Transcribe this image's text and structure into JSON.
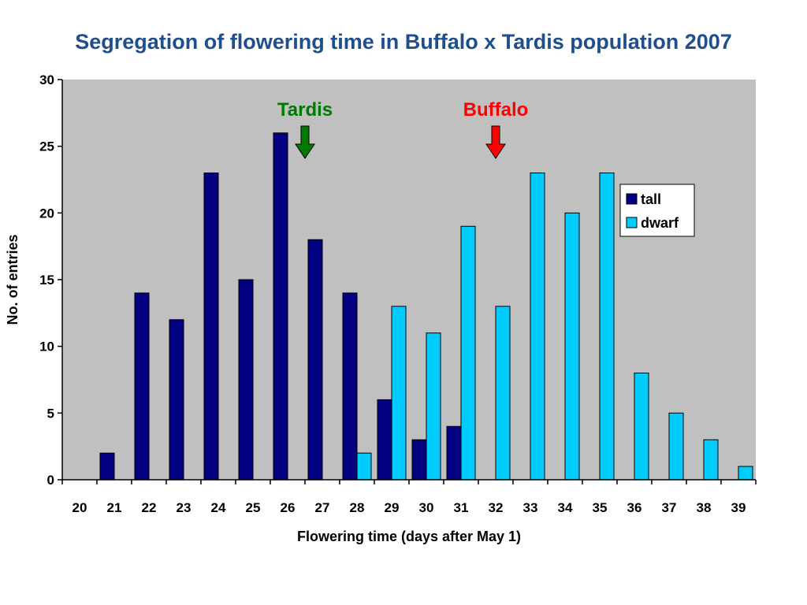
{
  "chart_data": {
    "type": "bar",
    "title": "Segregation of flowering time in Buffalo x Tardis population 2007",
    "xlabel": "Flowering time (days after May 1)",
    "ylabel": "No. of entries",
    "categories": [
      "20",
      "21",
      "22",
      "23",
      "24",
      "25",
      "26",
      "27",
      "28",
      "29",
      "30",
      "31",
      "32",
      "33",
      "34",
      "35",
      "36",
      "37",
      "38",
      "39"
    ],
    "series": [
      {
        "name": "tall",
        "color": "#000080",
        "values": [
          0,
          2,
          14,
          12,
          23,
          15,
          26,
          18,
          14,
          6,
          3,
          4,
          0,
          0,
          0,
          0,
          0,
          0,
          0,
          0
        ]
      },
      {
        "name": "dwarf",
        "color": "#00ccff",
        "values": [
          0,
          0,
          0,
          0,
          0,
          0,
          0,
          0,
          2,
          13,
          11,
          19,
          13,
          23,
          20,
          23,
          8,
          5,
          3,
          1
        ]
      }
    ],
    "ylim": [
      0,
      30
    ],
    "yticks": [
      0,
      5,
      10,
      15,
      20,
      25,
      30
    ],
    "grid": false,
    "plot_background": "#c0c0c0",
    "legend_position": "top-right",
    "annotations": [
      {
        "text": "Tardis",
        "color": "#007a00",
        "x": "26.5",
        "arrow": "down"
      },
      {
        "text": "Buffalo",
        "color": "#ff0000",
        "x": "32",
        "arrow": "down"
      }
    ]
  }
}
